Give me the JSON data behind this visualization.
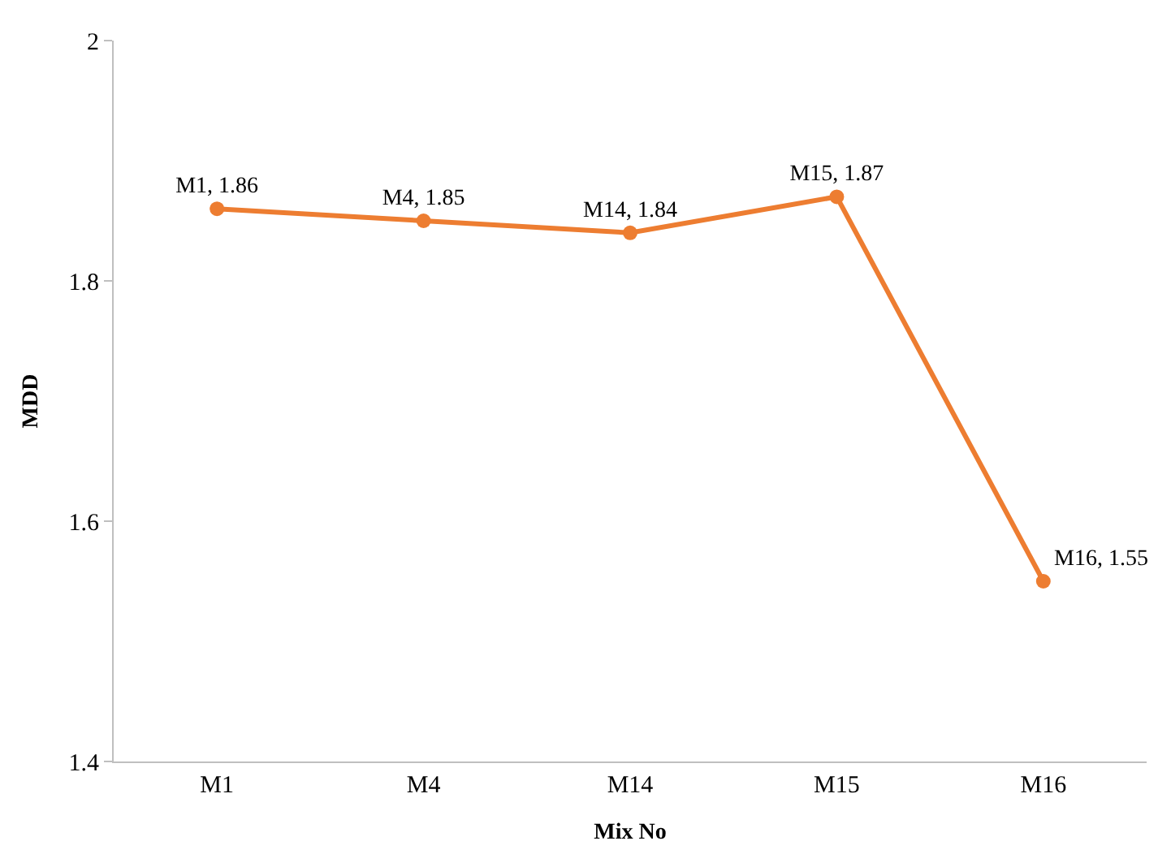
{
  "chart_data": {
    "type": "line",
    "xlabel": "Mix No",
    "ylabel": "MDD",
    "categories": [
      "M1",
      "M4",
      "M14",
      "M15",
      "M16"
    ],
    "series": [
      {
        "color": "#ed7d31",
        "values": [
          1.86,
          1.85,
          1.84,
          1.87,
          1.55
        ],
        "value_labels": [
          "M1, 1.86",
          "M4, 1.85",
          "M14, 1.84",
          "M15, 1.87",
          "M16, 1.55"
        ]
      }
    ],
    "ylim": [
      1.4,
      2
    ],
    "yticks": [
      1.4,
      1.6,
      1.8,
      2
    ],
    "grid": false,
    "marker": "circle",
    "line_style": "solid"
  }
}
